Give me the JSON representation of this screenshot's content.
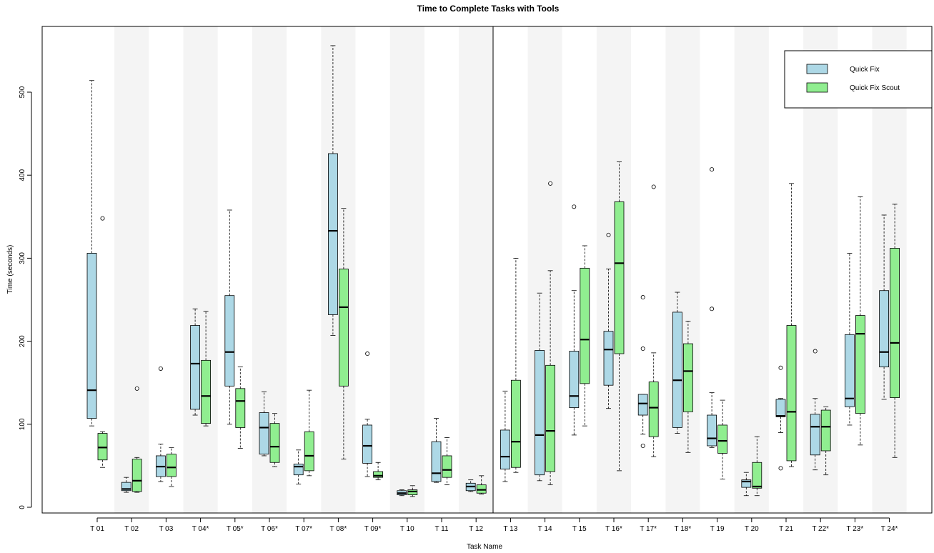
{
  "chart_data": {
    "type": "boxplot",
    "title": "Time to Complete Tasks with Tools",
    "xlabel": "Task Name",
    "ylabel": "Time (seconds)",
    "ylim": [
      0,
      570
    ],
    "yticks": [
      0,
      100,
      200,
      300,
      400,
      500
    ],
    "grid": false,
    "legend_position": "top-right",
    "colors": {
      "Quick Fix": "#add8e6",
      "Quick Fix Scout": "#90ee90",
      "band": "#f4f4f4"
    },
    "categories": [
      "T 01",
      "T 02",
      "T 03",
      "T 04*",
      "T 05*",
      "T 06*",
      "T 07*",
      "T 08*",
      "T 09*",
      "T 10",
      "T 11",
      "T 12",
      "T 13",
      "T 14",
      "T 15",
      "T 16*",
      "T 17*",
      "T 18*",
      "T 19",
      "T 20",
      "T 21",
      "T 22*",
      "T 23*",
      "T 24*"
    ],
    "series": [
      {
        "name": "Quick Fix",
        "boxes": [
          {
            "whisker_low": 98,
            "q1": 107,
            "median": 141,
            "q3": 306,
            "whisker_high": 514,
            "outliers": []
          },
          {
            "whisker_low": 18,
            "q1": 20,
            "median": 22,
            "q3": 30,
            "whisker_high": 36,
            "outliers": []
          },
          {
            "whisker_low": 31,
            "q1": 37,
            "median": 49,
            "q3": 62,
            "whisker_high": 76,
            "outliers": [
              167
            ]
          },
          {
            "whisker_low": 111,
            "q1": 118,
            "median": 173,
            "q3": 219,
            "whisker_high": 239,
            "outliers": []
          },
          {
            "whisker_low": 100,
            "q1": 146,
            "median": 187,
            "q3": 255,
            "whisker_high": 358,
            "outliers": []
          },
          {
            "whisker_low": 62,
            "q1": 64,
            "median": 96,
            "q3": 114,
            "whisker_high": 139,
            "outliers": []
          },
          {
            "whisker_low": 28,
            "q1": 39,
            "median": 49,
            "q3": 52,
            "whisker_high": 69,
            "outliers": []
          },
          {
            "whisker_low": 207,
            "q1": 232,
            "median": 333,
            "q3": 426,
            "whisker_high": 556,
            "outliers": []
          },
          {
            "whisker_low": 37,
            "q1": 53,
            "median": 74,
            "q3": 99,
            "whisker_high": 106,
            "outliers": [
              185
            ]
          },
          {
            "whisker_low": 14,
            "q1": 15,
            "median": 17,
            "q3": 20,
            "whisker_high": 21,
            "outliers": []
          },
          {
            "whisker_low": 30,
            "q1": 31,
            "median": 41,
            "q3": 79,
            "whisker_high": 107,
            "outliers": []
          },
          {
            "whisker_low": 19,
            "q1": 20,
            "median": 25,
            "q3": 29,
            "whisker_high": 33,
            "outliers": []
          },
          {
            "whisker_low": 31,
            "q1": 46,
            "median": 61,
            "q3": 93,
            "whisker_high": 140,
            "outliers": []
          },
          {
            "whisker_low": 32,
            "q1": 39,
            "median": 87,
            "q3": 189,
            "whisker_high": 258,
            "outliers": []
          },
          {
            "whisker_low": 87,
            "q1": 120,
            "median": 134,
            "q3": 188,
            "whisker_high": 261,
            "outliers": [
              362
            ]
          },
          {
            "whisker_low": 119,
            "q1": 147,
            "median": 190,
            "q3": 212,
            "whisker_high": 287,
            "outliers": [
              328
            ]
          },
          {
            "whisker_low": 88,
            "q1": 111,
            "median": 125,
            "q3": 136,
            "whisker_high": 136,
            "outliers": [
              74,
              191,
              253
            ]
          },
          {
            "whisker_low": 89,
            "q1": 96,
            "median": 153,
            "q3": 235,
            "whisker_high": 259,
            "outliers": []
          },
          {
            "whisker_low": 72,
            "q1": 74,
            "median": 83,
            "q3": 111,
            "whisker_high": 138,
            "outliers": [
              239,
              407
            ]
          },
          {
            "whisker_low": 14,
            "q1": 24,
            "median": 31,
            "q3": 33,
            "whisker_high": 42,
            "outliers": []
          },
          {
            "whisker_low": 90,
            "q1": 109,
            "median": 110,
            "q3": 130,
            "whisker_high": 131,
            "outliers": [
              47,
              168
            ]
          },
          {
            "whisker_low": 45,
            "q1": 63,
            "median": 97,
            "q3": 112,
            "whisker_high": 131,
            "outliers": [
              188
            ]
          },
          {
            "whisker_low": 99,
            "q1": 121,
            "median": 131,
            "q3": 208,
            "whisker_high": 306,
            "outliers": []
          },
          {
            "whisker_low": 130,
            "q1": 169,
            "median": 187,
            "q3": 261,
            "whisker_high": 352,
            "outliers": []
          }
        ]
      },
      {
        "name": "Quick Fix Scout",
        "boxes": [
          {
            "whisker_low": 48,
            "q1": 57,
            "median": 72,
            "q3": 89,
            "whisker_high": 91,
            "outliers": [
              348
            ]
          },
          {
            "whisker_low": 18,
            "q1": 19,
            "median": 32,
            "q3": 58,
            "whisker_high": 60,
            "outliers": [
              143
            ]
          },
          {
            "whisker_low": 25,
            "q1": 37,
            "median": 48,
            "q3": 64,
            "whisker_high": 72,
            "outliers": []
          },
          {
            "whisker_low": 98,
            "q1": 101,
            "median": 134,
            "q3": 177,
            "whisker_high": 236,
            "outliers": []
          },
          {
            "whisker_low": 71,
            "q1": 96,
            "median": 128,
            "q3": 143,
            "whisker_high": 169,
            "outliers": []
          },
          {
            "whisker_low": 49,
            "q1": 54,
            "median": 73,
            "q3": 101,
            "whisker_high": 113,
            "outliers": []
          },
          {
            "whisker_low": 38,
            "q1": 44,
            "median": 62,
            "q3": 91,
            "whisker_high": 141,
            "outliers": []
          },
          {
            "whisker_low": 58,
            "q1": 146,
            "median": 241,
            "q3": 287,
            "whisker_high": 360,
            "outliers": []
          },
          {
            "whisker_low": 33,
            "q1": 36,
            "median": 38,
            "q3": 43,
            "whisker_high": 54,
            "outliers": []
          },
          {
            "whisker_low": 13,
            "q1": 15,
            "median": 19,
            "q3": 21,
            "whisker_high": 26,
            "outliers": []
          },
          {
            "whisker_low": 27,
            "q1": 36,
            "median": 45,
            "q3": 62,
            "whisker_high": 84,
            "outliers": []
          },
          {
            "whisker_low": 16,
            "q1": 17,
            "median": 21,
            "q3": 27,
            "whisker_high": 38,
            "outliers": []
          },
          {
            "whisker_low": 42,
            "q1": 48,
            "median": 79,
            "q3": 153,
            "whisker_high": 300,
            "outliers": []
          },
          {
            "whisker_low": 27,
            "q1": 43,
            "median": 92,
            "q3": 171,
            "whisker_high": 285,
            "outliers": [
              390
            ]
          },
          {
            "whisker_low": 98,
            "q1": 149,
            "median": 202,
            "q3": 288,
            "whisker_high": 315,
            "outliers": []
          },
          {
            "whisker_low": 44,
            "q1": 185,
            "median": 294,
            "q3": 368,
            "whisker_high": 416,
            "outliers": []
          },
          {
            "whisker_low": 61,
            "q1": 85,
            "median": 120,
            "q3": 151,
            "whisker_high": 186,
            "outliers": [
              386
            ]
          },
          {
            "whisker_low": 66,
            "q1": 115,
            "median": 164,
            "q3": 197,
            "whisker_high": 224,
            "outliers": []
          },
          {
            "whisker_low": 34,
            "q1": 65,
            "median": 80,
            "q3": 99,
            "whisker_high": 129,
            "outliers": []
          },
          {
            "whisker_low": 14,
            "q1": 23,
            "median": 25,
            "q3": 54,
            "whisker_high": 85,
            "outliers": []
          },
          {
            "whisker_low": 49,
            "q1": 56,
            "median": 115,
            "q3": 219,
            "whisker_high": 390,
            "outliers": []
          },
          {
            "whisker_low": 39,
            "q1": 68,
            "median": 97,
            "q3": 117,
            "whisker_high": 121,
            "outliers": []
          },
          {
            "whisker_low": 75,
            "q1": 113,
            "median": 209,
            "q3": 231,
            "whisker_high": 374,
            "outliers": []
          },
          {
            "whisker_low": 60,
            "q1": 132,
            "median": 198,
            "q3": 312,
            "whisker_high": 365,
            "outliers": []
          }
        ]
      }
    ]
  }
}
